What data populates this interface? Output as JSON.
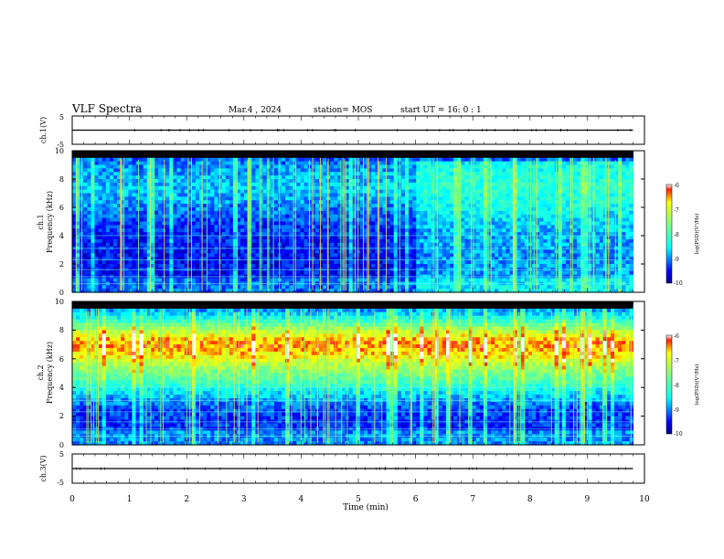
{
  "header": {
    "title": "VLF Spectra",
    "date": "Mar.4 , 2024",
    "station": "station= MOS",
    "start_ut": "start UT =  16: 0 : 1"
  },
  "chart_data": [
    {
      "type": "line",
      "panel": "ch1-waveform",
      "ylabel": "ch.1(V)",
      "ylim": [
        -5,
        5
      ],
      "yticks": [
        "5",
        "-5"
      ],
      "series": [
        {
          "values": [
            [
              0,
              0
            ],
            [
              9.8,
              0
            ]
          ]
        }
      ]
    },
    {
      "type": "heatmap",
      "panel": "ch1-spectrogram",
      "ylabel": [
        "ch.1",
        "Frequency (kHz)"
      ],
      "xlim": [
        0,
        10
      ],
      "ylim": [
        0,
        10
      ],
      "yticks": [
        "0",
        "2",
        "4",
        "6",
        "8",
        "10"
      ],
      "data_end_min": 9.8,
      "colorbar": {
        "label": "log(PSD)(V²/Hz)",
        "range": [
          -10,
          -6
        ],
        "ticks": [
          "-6",
          "-7",
          "-8",
          "-9",
          "-10"
        ]
      }
    },
    {
      "type": "heatmap",
      "panel": "ch2-spectrogram",
      "ylabel": [
        "ch.2",
        "Frequency (kHz)"
      ],
      "xlim": [
        0,
        10
      ],
      "ylim": [
        0,
        10
      ],
      "yticks": [
        "0",
        "2",
        "4",
        "6",
        "8",
        "10"
      ],
      "data_end_min": 9.8,
      "colorbar": {
        "label": "log(PSD)(V²/Hz)",
        "range": [
          -10,
          -6
        ],
        "ticks": [
          "-6",
          "-7",
          "-8",
          "-9",
          "-10"
        ]
      }
    },
    {
      "type": "line",
      "panel": "ch3-waveform",
      "ylabel": "ch.3(V)",
      "ylim": [
        -5,
        5
      ],
      "yticks": [
        "5",
        "-5"
      ],
      "series": [
        {
          "values": [
            [
              0,
              0
            ],
            [
              9.8,
              0
            ]
          ]
        }
      ]
    }
  ],
  "xaxis": {
    "label": "Time  (min)",
    "range": [
      0,
      10
    ],
    "ticks": [
      "0",
      "1",
      "2",
      "3",
      "4",
      "5",
      "6",
      "7",
      "8",
      "9",
      "10"
    ]
  },
  "colors": {
    "background_low": "#000080",
    "spectrum_high": "#ff2000",
    "trace": "#000000"
  }
}
